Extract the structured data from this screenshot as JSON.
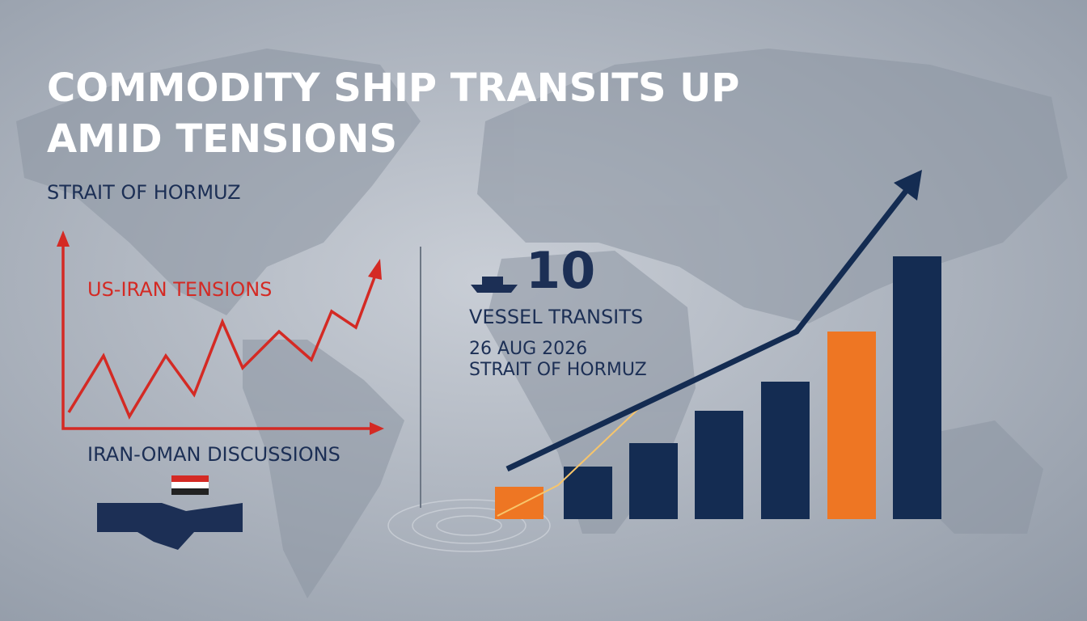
{
  "header": {
    "title_lines": [
      "COMMODITY SHIP TRANSITS UP",
      "AMID TENSIONS"
    ],
    "subtitle": "STRAIT OF HORMUZ"
  },
  "left_panel": {
    "tension_label": "US-IRAN TENSIONS",
    "discussion_label": "IRAN-OMAN DISCUSSIONS"
  },
  "stat": {
    "number": "10",
    "label": "VESSEL TRANSITS",
    "date": "26 AUG 2026",
    "location": "STRAIT OF HORMUZ"
  }
}
